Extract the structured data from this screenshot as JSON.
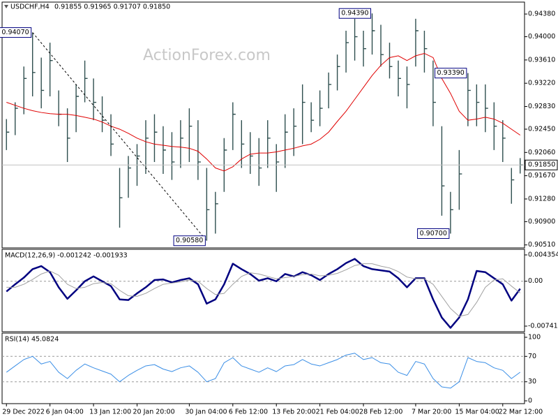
{
  "chart_data": [
    {
      "type": "ohlc",
      "title": "USDCHF,H4",
      "subtitle": "0.91855 0.91965 0.91707 0.91850",
      "watermark": "ActionForex.com",
      "categories": [
        "29 Dec 2022",
        null,
        null,
        null,
        null,
        "6 Jan 04:00",
        null,
        null,
        null,
        null,
        "13 Jan 12:00",
        null,
        null,
        null,
        null,
        "20 Jan 20:00",
        null,
        null,
        null,
        null,
        null,
        "30 Jan 04:00",
        null,
        null,
        null,
        null,
        "6 Feb 12:00",
        null,
        null,
        null,
        null,
        "13 Feb 20:00",
        null,
        null,
        null,
        null,
        "21 Feb 04:00",
        null,
        null,
        null,
        null,
        "28 Feb 12:00",
        null,
        null,
        null,
        null,
        null,
        "7 Mar 20:00",
        null,
        null,
        null,
        null,
        "15 Mar 04:00",
        null,
        null,
        null,
        null,
        "22 Mar 12:00",
        null,
        null
      ],
      "color": "#2f4f4f",
      "high": [
        0.9262,
        0.929,
        0.935,
        0.9407,
        0.9365,
        0.939,
        0.931,
        0.928,
        0.932,
        0.936,
        0.933,
        0.93,
        0.927,
        0.918,
        0.92,
        0.922,
        0.926,
        0.927,
        0.925,
        0.924,
        0.926,
        0.928,
        0.926,
        0.918,
        0.914,
        0.923,
        0.929,
        0.926,
        0.924,
        0.923,
        0.926,
        0.922,
        0.927,
        0.928,
        0.932,
        0.929,
        0.931,
        0.934,
        0.937,
        0.941,
        0.943,
        0.941,
        0.9439,
        0.942,
        0.939,
        0.936,
        0.935,
        0.943,
        0.941,
        0.936,
        0.925,
        0.914,
        0.921,
        0.9339,
        0.932,
        0.932,
        0.929,
        0.926,
        0.918,
        0.91965
      ],
      "low": [
        0.921,
        0.9235,
        0.927,
        0.93,
        0.928,
        0.93,
        0.925,
        0.919,
        0.924,
        0.929,
        0.926,
        0.924,
        0.92,
        0.908,
        0.913,
        0.915,
        0.917,
        0.919,
        0.917,
        0.916,
        0.918,
        0.919,
        0.916,
        0.9058,
        0.907,
        0.914,
        0.921,
        0.918,
        0.917,
        0.915,
        0.918,
        0.914,
        0.918,
        0.92,
        0.922,
        0.924,
        0.925,
        0.928,
        0.931,
        0.934,
        0.936,
        0.935,
        0.937,
        0.935,
        0.933,
        0.93,
        0.928,
        0.935,
        0.934,
        0.925,
        0.91,
        0.907,
        0.911,
        0.925,
        0.925,
        0.924,
        0.921,
        0.919,
        0.912,
        0.91707
      ],
      "close": [
        0.924,
        0.928,
        0.933,
        0.934,
        0.931,
        0.936,
        0.927,
        0.923,
        0.93,
        0.933,
        0.929,
        0.926,
        0.922,
        0.913,
        0.918,
        0.92,
        0.923,
        0.924,
        0.921,
        0.919,
        0.923,
        0.925,
        0.919,
        0.911,
        0.912,
        0.921,
        0.927,
        0.922,
        0.92,
        0.918,
        0.923,
        0.919,
        0.924,
        0.925,
        0.929,
        0.926,
        0.928,
        0.932,
        0.935,
        0.939,
        0.94,
        0.938,
        0.941,
        0.937,
        0.935,
        0.933,
        0.932,
        0.941,
        0.938,
        0.929,
        0.915,
        0.911,
        0.917,
        0.931,
        0.929,
        0.928,
        0.925,
        0.923,
        0.916,
        0.9185
      ],
      "overlay": {
        "color": "#e00000",
        "values": [
          0.929,
          0.9285,
          0.928,
          0.9276,
          0.9273,
          0.9271,
          0.927,
          0.927,
          0.9268,
          0.9265,
          0.9262,
          0.9257,
          0.925,
          0.9245,
          0.9238,
          0.923,
          0.9224,
          0.922,
          0.9218,
          0.9216,
          0.9215,
          0.9213,
          0.9208,
          0.9195,
          0.918,
          0.9175,
          0.9182,
          0.9195,
          0.9203,
          0.9205,
          0.9205,
          0.9207,
          0.921,
          0.9213,
          0.9217,
          0.922,
          0.9228,
          0.924,
          0.9258,
          0.9275,
          0.9295,
          0.9315,
          0.9335,
          0.9352,
          0.9365,
          0.9368,
          0.936,
          0.9368,
          0.9372,
          0.9365,
          0.933,
          0.9305,
          0.9275,
          0.926,
          0.9262,
          0.9265,
          0.9262,
          0.9255,
          0.9245,
          0.9235
        ]
      },
      "ylim": [
        0.9046,
        0.9458
      ],
      "yticks": [
        {
          "value": 0.9051,
          "label": "0.90510"
        },
        {
          "value": 0.909,
          "label": "0.90900"
        },
        {
          "value": 0.9128,
          "label": "0.91280"
        },
        {
          "value": 0.9167,
          "label": "0.91670"
        },
        {
          "value": 0.9206,
          "label": "0.92060"
        },
        {
          "value": 0.9245,
          "label": "0.92450"
        },
        {
          "value": 0.9283,
          "label": "0.92830"
        },
        {
          "value": 0.9322,
          "label": "0.93220"
        },
        {
          "value": 0.9361,
          "label": "0.93610"
        },
        {
          "value": 0.94,
          "label": "0.94000"
        },
        {
          "value": 0.9438,
          "label": "0.94380"
        }
      ],
      "annotations": [
        {
          "bar": 3,
          "value": 0.9407,
          "label": "0.94070"
        },
        {
          "bar": 23,
          "value": 0.9058,
          "label": "0.90580"
        },
        {
          "bar": 42,
          "value": 0.9439,
          "label": "0.94390"
        },
        {
          "bar": 53,
          "value": 0.9339,
          "label": "0.93390"
        },
        {
          "bar": 51,
          "value": 0.907,
          "label": "0.90700"
        }
      ],
      "trendline": {
        "from": 0,
        "to": 1
      },
      "current_price": {
        "value": 0.9185,
        "label": "0.91850"
      }
    },
    {
      "type": "line",
      "title": "MACD(12,26,9) -0.001242 -0.001933",
      "series": [
        {
          "color": "#000080",
          "width": 2.5,
          "values": [
            -0.0017,
            -0.0005,
            0.0006,
            0.002,
            0.0025,
            0.0015,
            -0.001,
            -0.0029,
            -0.0015,
            0,
            0.0008,
            0,
            -0.0008,
            -0.003,
            -0.0031,
            -0.002,
            -0.001,
            0.0002,
            0.0003,
            -0.0002,
            0.0002,
            0.0005,
            -0.0005,
            -0.0037,
            -0.003,
            -0.0005,
            0.0029,
            0.002,
            0.0012,
            0.0001,
            0.0005,
            0,
            0.0012,
            0.0008,
            0.0015,
            0.001,
            0.0002,
            0.0012,
            0.002,
            0.003,
            0.0037,
            0.0025,
            0.002,
            0.0018,
            0.0016,
            0.0005,
            -0.001,
            0.0005,
            0.0005,
            -0.003,
            -0.006,
            -0.0077,
            -0.006,
            -0.003,
            0.0017,
            0.0015,
            0.0005,
            -0.0005,
            -0.0032,
            -0.001242
          ]
        },
        {
          "color": "#a0a0a0",
          "width": 1,
          "values": [
            -0.001,
            -0.001,
            -0.0005,
            0.0003,
            0.0012,
            0.0017,
            0.001,
            -0.0005,
            -0.0012,
            -0.001,
            -0.0004,
            -0.0002,
            -0.0004,
            -0.0015,
            -0.0024,
            -0.0025,
            -0.002,
            -0.0012,
            -0.0005,
            -0.0003,
            -0.0001,
            0.0002,
            0,
            -0.0012,
            -0.0022,
            -0.002,
            -0.0005,
            0.0008,
            0.0014,
            0.0012,
            0.0008,
            0.0004,
            0.0006,
            0.0008,
            0.0011,
            0.0012,
            0.0009,
            0.001,
            0.0013,
            0.0019,
            0.0026,
            0.0029,
            0.0029,
            0.0025,
            0.0022,
            0.0016,
            0.0007,
            0.0004,
            0.0004,
            -0.0005,
            -0.0025,
            -0.0045,
            -0.0058,
            -0.0055,
            -0.0035,
            -0.001,
            0.0002,
            0.0004,
            -0.0008,
            -0.001933
          ]
        }
      ],
      "ylim": [
        -0.00834,
        0.00528
      ],
      "yticks": [
        0.004354,
        {
          "value": 0,
          "label": "0.00"
        },
        -0.007417
      ],
      "reference_lines": [
        0
      ]
    },
    {
      "type": "line",
      "title": "RSI(14) 45.0824",
      "series": [
        {
          "color": "#3a8ee6",
          "width": 1,
          "values": [
            45,
            55,
            65,
            70,
            58,
            62,
            45,
            35,
            48,
            58,
            52,
            47,
            42,
            30,
            40,
            48,
            55,
            57,
            50,
            46,
            52,
            55,
            45,
            30,
            35,
            60,
            68,
            55,
            50,
            45,
            52,
            46,
            55,
            57,
            65,
            58,
            55,
            60,
            65,
            72,
            75,
            65,
            68,
            60,
            58,
            45,
            40,
            62,
            58,
            35,
            22,
            20,
            30,
            68,
            62,
            60,
            52,
            48,
            35,
            45.0824
          ]
        }
      ],
      "ylim": [
        -4.4,
        106.6
      ],
      "yticks": [
        100,
        70,
        30,
        0
      ],
      "reference_lines": [
        30,
        70
      ]
    }
  ]
}
